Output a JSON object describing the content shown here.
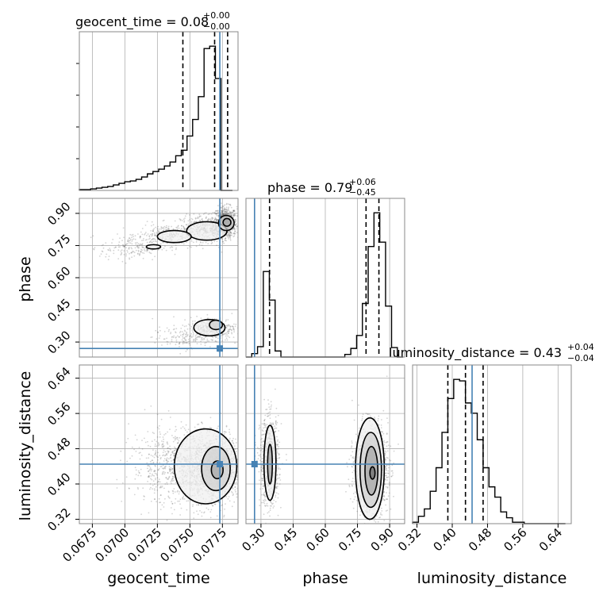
{
  "chart_data": {
    "type": "corner",
    "parameters": [
      "geocent_time",
      "phase",
      "luminosity_distance"
    ],
    "axis_labels": {
      "geocent_time": "geocent_time",
      "phase": "phase",
      "luminosity_distance": "luminosity_distance"
    },
    "truths": {
      "geocent_time": 0.0773,
      "phase": 0.27,
      "luminosity_distance": 0.445
    },
    "ranges": {
      "geocent_time": [
        0.0665,
        0.0787
      ],
      "phase": [
        0.23,
        0.97
      ],
      "luminosity_distance": [
        0.31,
        0.67
      ]
    },
    "ticks": {
      "geocent_time": [
        "0.0675",
        "0.0700",
        "0.0725",
        "0.0750",
        "0.0775"
      ],
      "phase": [
        "0.30",
        "0.45",
        "0.60",
        "0.75",
        "0.90"
      ],
      "luminosity_distance": [
        "0.32",
        "0.40",
        "0.48",
        "0.56",
        "0.64"
      ]
    },
    "titles": [
      {
        "name": "geocent_time",
        "text": "geocent_time = 0.08",
        "plus": "+0.00",
        "minus": "−0.00"
      },
      {
        "name": "phase",
        "text": "phase = 0.79",
        "plus": "+0.06",
        "minus": "−0.45"
      },
      {
        "name": "luminosity_distance",
        "text": "luminosity_distance = 0.43",
        "plus": "+0.04",
        "minus": "−0.04"
      }
    ],
    "quantiles": {
      "geocent_time": [
        0.07446,
        0.0769,
        0.0779
      ],
      "phase": [
        0.34,
        0.79,
        0.85
      ],
      "luminosity_distance": [
        0.39,
        0.43,
        0.47
      ]
    },
    "hist_geocent_time": {
      "edges": [
        0.0665,
        0.06694,
        0.06737,
        0.06781,
        0.06824,
        0.06868,
        0.06911,
        0.06955,
        0.06999,
        0.07042,
        0.07086,
        0.07129,
        0.07173,
        0.07216,
        0.0726,
        0.07304,
        0.07347,
        0.07391,
        0.07434,
        0.07478,
        0.07521,
        0.07565,
        0.07609,
        0.07652,
        0.07696,
        0.07739,
        0.07783,
        0.07827
      ],
      "counts": [
        1,
        1,
        2,
        3,
        4,
        5,
        7,
        9,
        11,
        12,
        14,
        17,
        21,
        24,
        27,
        31,
        36,
        44,
        51,
        69,
        90,
        119,
        180,
        183,
        142,
        0,
        0
      ]
    },
    "hist_phase": {
      "edges": [
        0.23,
        0.257,
        0.284,
        0.311,
        0.339,
        0.366,
        0.393,
        0.42,
        0.447,
        0.474,
        0.501,
        0.529,
        0.556,
        0.583,
        0.61,
        0.637,
        0.664,
        0.691,
        0.719,
        0.746,
        0.773,
        0.8,
        0.827,
        0.854,
        0.881,
        0.909,
        0.936,
        0.963
      ],
      "counts": [
        0,
        4,
        12,
        99,
        66,
        7,
        0,
        0,
        0,
        0,
        0,
        0,
        0,
        0,
        0,
        0,
        0,
        3,
        10,
        25,
        62,
        128,
        167,
        133,
        59,
        11,
        0
      ]
    },
    "hist_luminosity_distance": {
      "edges": [
        0.31,
        0.3233,
        0.3367,
        0.35,
        0.3633,
        0.3767,
        0.39,
        0.4033,
        0.4167,
        0.43,
        0.4433,
        0.4567,
        0.47,
        0.4833,
        0.4967,
        0.51,
        0.5233,
        0.5367,
        0.55,
        0.5633,
        0.5767,
        0.59,
        0.6033,
        0.6167,
        0.63,
        0.6433,
        0.6567
      ],
      "counts": [
        1,
        5,
        10,
        22,
        38,
        62,
        85,
        98,
        97,
        82,
        75,
        57,
        38,
        25,
        18,
        8,
        4,
        1,
        1,
        0,
        0,
        0,
        0,
        0,
        0,
        0
      ]
    },
    "clusters_time_phase": [
      {
        "cx": 0.0777,
        "cy": 0.86,
        "sx": 0.00045,
        "sy": 0.035,
        "w": 0.4
      },
      {
        "cx": 0.0765,
        "cy": 0.83,
        "sx": 0.0011,
        "sy": 0.03,
        "w": 0.25
      },
      {
        "cx": 0.0735,
        "cy": 0.8,
        "sx": 0.0012,
        "sy": 0.025,
        "w": 0.15
      },
      {
        "cx": 0.0705,
        "cy": 0.74,
        "sx": 0.0012,
        "sy": 0.03,
        "w": 0.1
      },
      {
        "cx": 0.0768,
        "cy": 0.365,
        "sx": 0.0009,
        "sy": 0.025,
        "w": 0.2
      },
      {
        "cx": 0.0745,
        "cy": 0.32,
        "sx": 0.0012,
        "sy": 0.025,
        "w": 0.08
      }
    ],
    "clusters_time_dist": [
      {
        "cx": 0.077,
        "cy": 0.435,
        "sx": 0.001,
        "sy": 0.035,
        "w": 0.6
      },
      {
        "cx": 0.0745,
        "cy": 0.44,
        "sx": 0.002,
        "sy": 0.045,
        "w": 0.4
      }
    ],
    "clusters_phase_dist": [
      {
        "cx": 0.34,
        "cy": 0.45,
        "sx": 0.022,
        "sy": 0.05,
        "w": 0.35
      },
      {
        "cx": 0.815,
        "cy": 0.43,
        "sx": 0.038,
        "sy": 0.05,
        "w": 0.65
      }
    ],
    "contours": {
      "time_phase": [
        {
          "cx": 0.07785,
          "cy": 0.858,
          "rx": 0.0003,
          "ry": 0.018,
          "level": 3
        },
        {
          "cx": 0.0778,
          "cy": 0.855,
          "rx": 0.0006,
          "ry": 0.035,
          "level": 2
        },
        {
          "cx": 0.0763,
          "cy": 0.818,
          "rx": 0.00155,
          "ry": 0.043,
          "level": 1
        },
        {
          "cx": 0.0738,
          "cy": 0.792,
          "rx": 0.0013,
          "ry": 0.028,
          "level": 1
        },
        {
          "cx": 0.0722,
          "cy": 0.744,
          "rx": 0.00055,
          "ry": 0.01,
          "level": 1
        },
        {
          "cx": 0.077,
          "cy": 0.38,
          "rx": 0.0005,
          "ry": 0.022,
          "level": 2
        },
        {
          "cx": 0.0765,
          "cy": 0.367,
          "rx": 0.0012,
          "ry": 0.038,
          "level": 1
        }
      ],
      "time_dist": [
        {
          "cx": 0.0771,
          "cy": 0.432,
          "rx": 0.00045,
          "ry": 0.02,
          "level": 3
        },
        {
          "cx": 0.077,
          "cy": 0.435,
          "rx": 0.0011,
          "ry": 0.05,
          "level": 2
        },
        {
          "cx": 0.0762,
          "cy": 0.44,
          "rx": 0.0024,
          "ry": 0.085,
          "level": 1
        }
      ],
      "phase_dist": [
        {
          "cx": 0.82,
          "cy": 0.425,
          "rx": 0.012,
          "ry": 0.014,
          "level": 4
        },
        {
          "cx": 0.815,
          "cy": 0.43,
          "rx": 0.03,
          "ry": 0.055,
          "level": 3
        },
        {
          "cx": 0.812,
          "cy": 0.432,
          "rx": 0.05,
          "ry": 0.085,
          "level": 2
        },
        {
          "cx": 0.808,
          "cy": 0.435,
          "rx": 0.067,
          "ry": 0.115,
          "level": 1
        },
        {
          "cx": 0.342,
          "cy": 0.445,
          "rx": 0.011,
          "ry": 0.045,
          "level": 3
        },
        {
          "cx": 0.342,
          "cy": 0.448,
          "rx": 0.028,
          "ry": 0.085,
          "level": 1
        }
      ]
    },
    "grid": true,
    "colors": {
      "truth": "#4682b4",
      "contour": "#000000",
      "points": "#555555"
    }
  }
}
